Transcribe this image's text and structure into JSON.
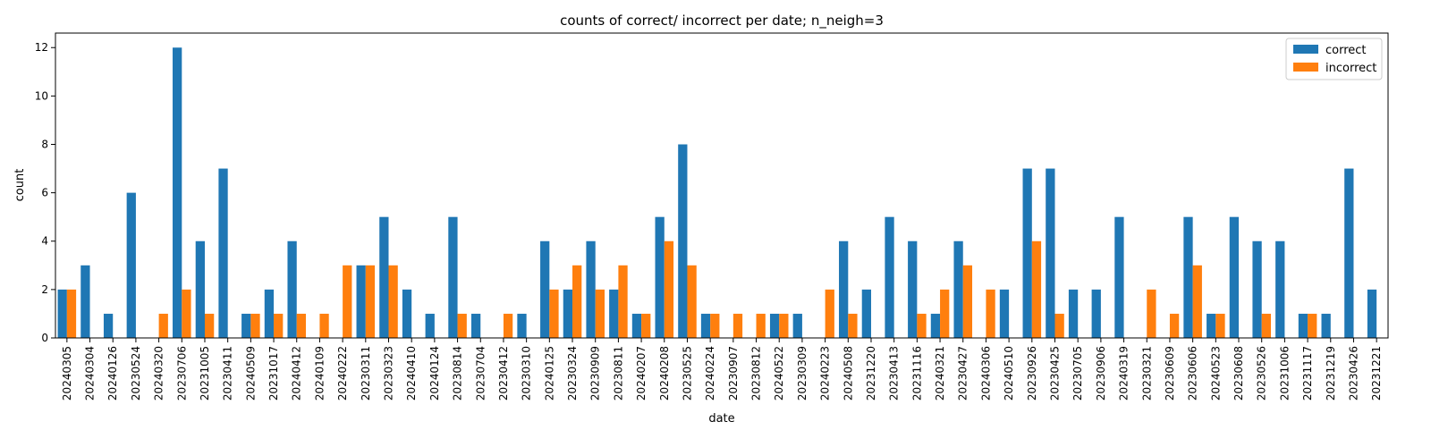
{
  "chart_data": {
    "type": "bar",
    "title": "counts of correct/ incorrect per date; n_neigh=3",
    "xlabel": "date",
    "ylabel": "count",
    "ylim": [
      0,
      12.6
    ],
    "yticks": [
      0,
      2,
      4,
      6,
      8,
      10,
      12
    ],
    "grid": false,
    "legend_position": "top-right",
    "categories": [
      "20240305",
      "20240304",
      "20240126",
      "20230524",
      "20240320",
      "20230706",
      "20231005",
      "20230411",
      "20240509",
      "20231017",
      "20240412",
      "20240109",
      "20240222",
      "20230311",
      "20230323",
      "20240410",
      "20240124",
      "20230814",
      "20230704",
      "20230412",
      "20230310",
      "20240125",
      "20230324",
      "20230909",
      "20230811",
      "20240207",
      "20240208",
      "20230525",
      "20240224",
      "20230907",
      "20230812",
      "20240522",
      "20230309",
      "20240223",
      "20240508",
      "20231220",
      "20230413",
      "20231116",
      "20240321",
      "20230427",
      "20240306",
      "20240510",
      "20230926",
      "20230425",
      "20230705",
      "20230906",
      "20240319",
      "20230321",
      "20230609",
      "20230606",
      "20240523",
      "20230608",
      "20230526",
      "20231006",
      "20231117",
      "20231219",
      "20230426",
      "20231221"
    ],
    "series": [
      {
        "name": "correct",
        "color": "#1f77b4",
        "values": [
          2,
          3,
          1,
          6,
          0,
          12,
          4,
          7,
          1,
          2,
          4,
          0,
          0,
          3,
          5,
          2,
          1,
          5,
          1,
          0,
          1,
          4,
          2,
          4,
          2,
          1,
          5,
          8,
          1,
          0,
          0,
          1,
          1,
          0,
          4,
          2,
          5,
          4,
          1,
          4,
          0,
          2,
          7,
          7,
          2,
          2,
          5,
          0,
          0,
          5,
          1,
          5,
          4,
          4,
          1,
          1,
          7,
          2
        ]
      },
      {
        "name": "incorrect",
        "color": "#ff7f0e",
        "values": [
          2,
          0,
          0,
          0,
          1,
          2,
          1,
          0,
          1,
          1,
          1,
          1,
          3,
          3,
          3,
          0,
          0,
          1,
          0,
          1,
          0,
          2,
          3,
          2,
          3,
          1,
          4,
          3,
          1,
          1,
          1,
          1,
          0,
          2,
          1,
          0,
          0,
          1,
          2,
          3,
          2,
          0,
          4,
          1,
          0,
          0,
          0,
          2,
          1,
          3,
          1,
          0,
          1,
          0,
          1,
          0,
          0,
          0
        ]
      }
    ]
  }
}
